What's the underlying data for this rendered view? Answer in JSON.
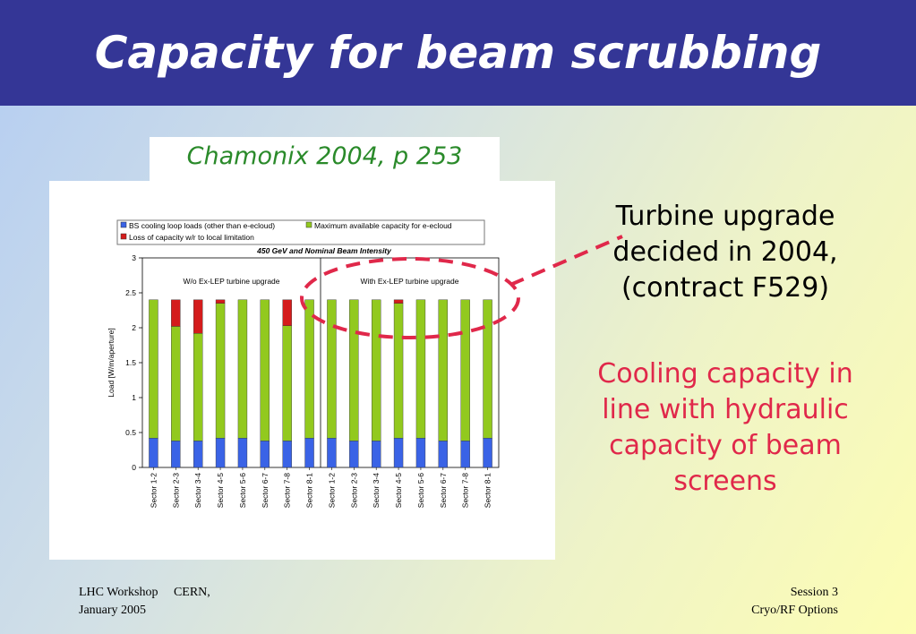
{
  "title": "Capacity for beam scrubbing",
  "source": "Chamonix 2004, p 253",
  "side_black": [
    "Turbine upgrade",
    "decided in 2004,",
    "(contract F529)"
  ],
  "side_red": [
    "Cooling capacity in",
    "line with hydraulic",
    "capacity of beam",
    "screens"
  ],
  "footer": {
    "left": [
      "LHC Workshop     CERN,",
      "January 2005"
    ],
    "right": [
      "Session 3",
      "Cryo/RF Options"
    ]
  },
  "colors": {
    "title_bar": "#343696",
    "blue": "#3a63e6",
    "green": "#92c91e",
    "red": "#d41c1c",
    "annotation": "#e0284a",
    "source_text": "#2a8a2a"
  },
  "chart_data": {
    "type": "bar",
    "stacked": true,
    "title": "450 GeV and Nominal Beam Intensity",
    "ylabel": "Load [W/m/aperture]",
    "ylim": [
      0,
      3
    ],
    "yticks": [
      "0",
      "0.5",
      "1",
      "1.5",
      "2",
      "2.5",
      "3"
    ],
    "categories": [
      "Sector 1-2",
      "Sector 2-3",
      "Sector 3-4",
      "Sector 4-5",
      "Sector 5-6",
      "Sector 6-7",
      "Sector 7-8",
      "Sector 8-1",
      "Sector 1-2",
      "Sector 2-3",
      "Sector 3-4",
      "Sector 4-5",
      "Sector 5-6",
      "Sector 6-7",
      "Sector 7-8",
      "Sector 8-1"
    ],
    "groups": [
      "W/o Ex-LEP turbine upgrade",
      "With Ex-LEP turbine upgrade"
    ],
    "legend": [
      "BS cooling loop loads (other than e-ecloud)",
      "Maximum available capacity for e-ecloud",
      "Loss of capacity w/r to local limitation"
    ],
    "series": [
      {
        "name": "BS cooling loop loads (other than e-ecloud)",
        "color": "blue",
        "values": [
          0.42,
          0.38,
          0.38,
          0.42,
          0.42,
          0.38,
          0.38,
          0.42,
          0.42,
          0.38,
          0.38,
          0.42,
          0.42,
          0.38,
          0.38,
          0.42
        ]
      },
      {
        "name": "Maximum available capacity for e-ecloud",
        "color": "green",
        "values": [
          1.98,
          1.64,
          1.54,
          1.93,
          1.98,
          2.02,
          1.65,
          1.98,
          1.98,
          2.02,
          2.02,
          1.93,
          1.98,
          2.02,
          2.02,
          1.98
        ]
      },
      {
        "name": "Loss of capacity w/r to local limitation",
        "color": "red",
        "values": [
          0,
          0.38,
          0.48,
          0.05,
          0,
          0,
          0.37,
          0,
          0,
          0,
          0,
          0.05,
          0,
          0,
          0,
          0
        ]
      }
    ],
    "legend_position": "top",
    "grid": false
  }
}
